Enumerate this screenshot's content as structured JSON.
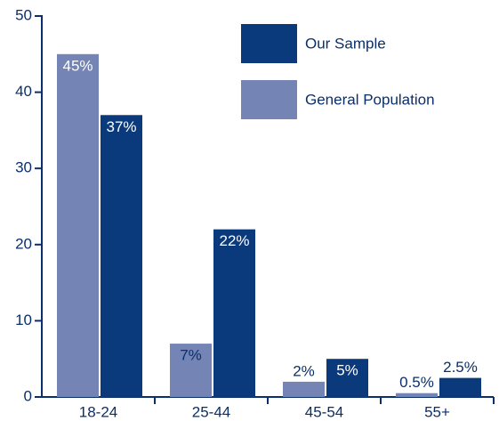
{
  "chart_data": {
    "type": "bar",
    "categories": [
      "18-24",
      "25-44",
      "45-54",
      "55+"
    ],
    "series": [
      {
        "name": "Our Sample",
        "color": "#0b3a7c",
        "values": [
          37,
          22,
          5,
          2.5
        ],
        "value_labels": [
          "37%",
          "22%",
          "5%",
          "2.5%"
        ]
      },
      {
        "name": "General Population",
        "color": "#7484b4",
        "values": [
          45,
          7,
          2,
          0.5
        ],
        "value_labels": [
          "45%",
          "7%",
          "2%",
          "0.5%"
        ]
      }
    ],
    "ylim": [
      0,
      50
    ],
    "yticks": [
      0,
      10,
      20,
      30,
      40,
      50
    ],
    "legend": "top-right"
  }
}
